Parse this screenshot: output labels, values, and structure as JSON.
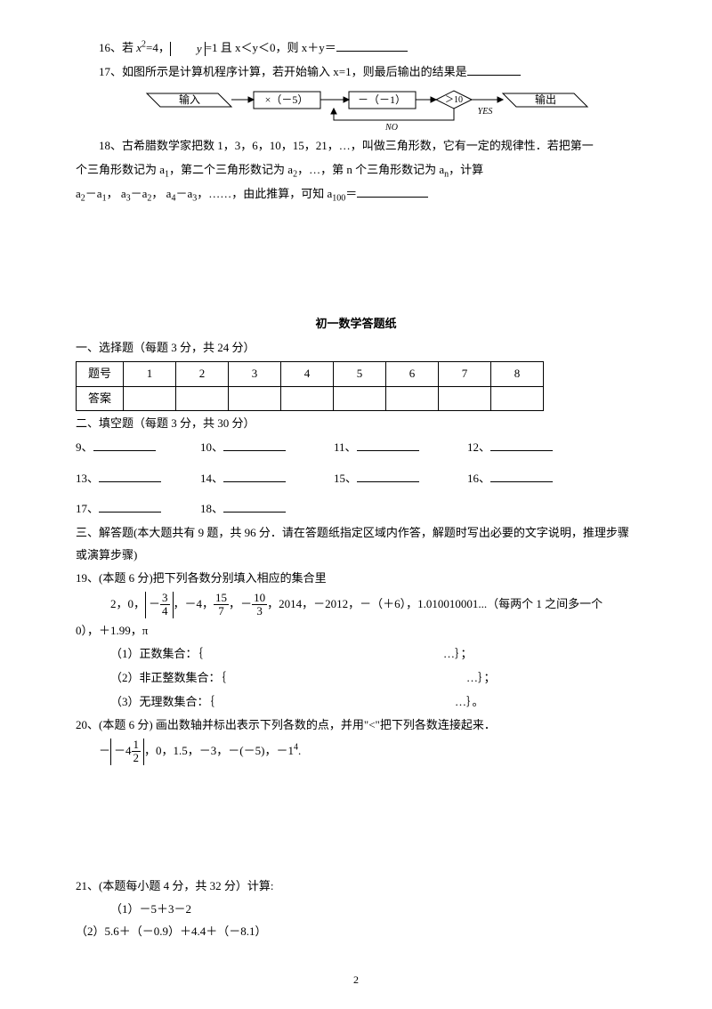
{
  "q16": {
    "pre": "16、若 ",
    "x2": "x",
    "sup": "2",
    "eq": "=4，",
    "abs_y": "y",
    "abs_eq": "=1 且 x＜y＜0，则 x＋y＝"
  },
  "q17": {
    "text": "17、如图所示是计算机程序计算，若开始输入 x=1，则最后输出的结果是"
  },
  "flow": {
    "input": "输入",
    "mul": "×（－5）",
    "sub": "－（－1）",
    "cmp": "＞10",
    "yes": "YES",
    "no": "NO",
    "output": "输出"
  },
  "q18": {
    "l1": "18、古希腊数学家把数 1，3，6，10，15，21，…，叫做三角形数，它有一定的规律性．若把第一",
    "l2a": "个三角形数记为 a",
    "l2b": "，第二个三角形数记为 a",
    "l2c": "，…，第 n 个三角形数记为 a",
    "l2d": "，计算",
    "l3a": "a",
    "l3b": "－a",
    "l3dots": "，……，由此推算，可知 a",
    "l3end": "＝"
  },
  "title": "初一数学答题纸",
  "sec1": "一、选择题（每题 3 分，共 24 分）",
  "table": {
    "h": "题号",
    "a": "答案",
    "cols": [
      "1",
      "2",
      "3",
      "4",
      "5",
      "6",
      "7",
      "8"
    ],
    "w_first": 50,
    "w_col": 56
  },
  "sec2": "二、填空题（每题 3 分，共 30 分）",
  "fill": {
    "r1": [
      "9、",
      "10、",
      "11、",
      "12、"
    ],
    "r2": [
      "13、",
      "14、",
      "15、",
      "16、"
    ],
    "r3": [
      "17、",
      "18、"
    ]
  },
  "sec3": "三、解答题(本大题共有 9 题，共 96 分．请在答题纸指定区域内作答，解题时写出必要的文字说明，推理步骤或演算步骤)",
  "q19": {
    "head": "19、(本题 6 分)把下列各数分别填入相应的集合里",
    "items": {
      "lead": "2，0，",
      "frac1": {
        "n": "3",
        "d": "4"
      },
      "after1": "，－4，",
      "frac2": {
        "n": "15",
        "d": "7"
      },
      "comma": "，",
      "frac3": {
        "n": "10",
        "d": "3",
        "neg": "－"
      },
      "tail": "，2014，－2012，－（＋6），1.010010001...（每两个 1 之间多一个"
    },
    "line2": "0），＋1.99，π",
    "sets": [
      {
        "label": "（1）正数集合：",
        "open": "｛",
        "close": "…｝；"
      },
      {
        "label": "（2）非正整数集合：",
        "open": "｛",
        "close": "…｝；"
      },
      {
        "label": "（3）无理数集合：",
        "open": "｛",
        "close": "…｝。"
      }
    ]
  },
  "q20": {
    "head": "20、(本题 6 分) 画出数轴并标出表示下列各数的点，并用\"<\"把下列各数连接起来．",
    "expr": {
      "neg": "－",
      "abs_pre": "－4",
      "frac": {
        "n": "1",
        "d": "2"
      },
      "tail": "，0，1.5，－3，－(－5)，－1",
      "sup": "4",
      "dot": "."
    }
  },
  "q21": {
    "head": "21、(本题每小题 4 分，共 32 分）计算:",
    "a": "（1）－5＋3－2",
    "b": "（2）5.6＋（－0.9）＋4.4＋（－8.1）"
  },
  "pageno": "2"
}
